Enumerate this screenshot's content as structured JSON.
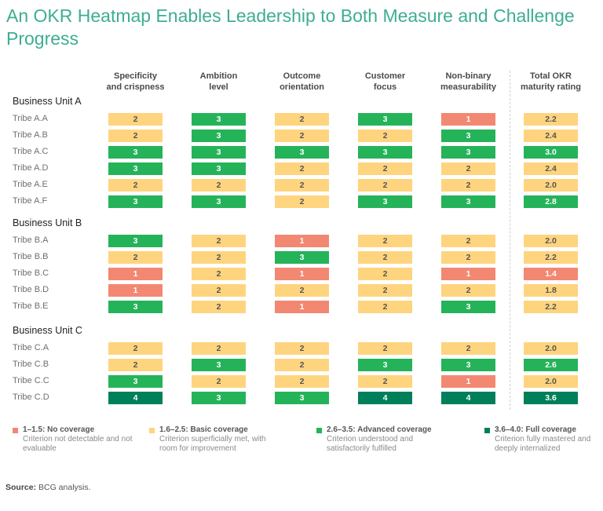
{
  "title": "An OKR Heatmap Enables Leadership to Both Measure and Challenge Progress",
  "chart_data": {
    "type": "heatmap",
    "title": "An OKR Heatmap Enables Leadership to Both Measure and Challenge Progress",
    "columns": [
      {
        "line1": "Specificity",
        "line2": "and crispness"
      },
      {
        "line1": "Ambition",
        "line2": "level"
      },
      {
        "line1": "Outcome",
        "line2": "orientation"
      },
      {
        "line1": "Customer",
        "line2": "focus"
      },
      {
        "line1": "Non-binary",
        "line2": "measurability"
      },
      {
        "line1": "Total OKR",
        "line2": "maturity rating"
      }
    ],
    "groups": [
      {
        "name": "Business Unit A",
        "rows": [
          {
            "label": "Tribe A.A",
            "values": [
              2,
              3,
              2,
              3,
              1
            ],
            "total": "2.2"
          },
          {
            "label": "Tribe A.B",
            "values": [
              2,
              3,
              2,
              2,
              3
            ],
            "total": "2.4"
          },
          {
            "label": "Tribe A.C",
            "values": [
              3,
              3,
              3,
              3,
              3
            ],
            "total": "3.0"
          },
          {
            "label": "Tribe A.D",
            "values": [
              3,
              3,
              2,
              2,
              2
            ],
            "total": "2.4"
          },
          {
            "label": "Tribe A.E",
            "values": [
              2,
              2,
              2,
              2,
              2
            ],
            "total": "2.0"
          },
          {
            "label": "Tribe A.F",
            "values": [
              3,
              3,
              2,
              3,
              3
            ],
            "total": "2.8"
          }
        ]
      },
      {
        "name": "Business Unit B",
        "rows": [
          {
            "label": "Tribe B.A",
            "values": [
              3,
              2,
              1,
              2,
              2
            ],
            "total": "2.0"
          },
          {
            "label": "Tribe B.B",
            "values": [
              2,
              2,
              3,
              2,
              2
            ],
            "total": "2.2"
          },
          {
            "label": "Tribe B.C",
            "values": [
              1,
              2,
              1,
              2,
              1
            ],
            "total": "1.4"
          },
          {
            "label": "Tribe B.D",
            "values": [
              1,
              2,
              2,
              2,
              2
            ],
            "total": "1.8"
          },
          {
            "label": "Tribe B.E",
            "values": [
              3,
              2,
              1,
              2,
              3
            ],
            "total": "2.2"
          }
        ]
      },
      {
        "name": "Business Unit C",
        "rows": [
          {
            "label": "Tribe C.A",
            "values": [
              2,
              2,
              2,
              2,
              2
            ],
            "total": "2.0"
          },
          {
            "label": "Tribe C.B",
            "values": [
              2,
              3,
              2,
              3,
              3
            ],
            "total": "2.6"
          },
          {
            "label": "Tribe C.C",
            "values": [
              3,
              2,
              2,
              2,
              1
            ],
            "total": "2.0"
          },
          {
            "label": "Tribe C.D",
            "values": [
              4,
              3,
              3,
              4,
              4
            ],
            "total": "3.6"
          }
        ]
      }
    ],
    "scale": [
      {
        "range": [
          1.0,
          1.5
        ],
        "label": "1–1.5: No coverage",
        "desc": "Criterion not detectable and not evaluable",
        "color": "#F28872",
        "text_color": "#ffffff"
      },
      {
        "range": [
          1.6,
          2.5
        ],
        "label": "1.6–2.5: Basic coverage",
        "desc": "Criterion superficially met, with room for improvement",
        "color": "#FFD47F",
        "text_color": "#555555"
      },
      {
        "range": [
          2.6,
          3.5
        ],
        "label": "2.6–3.5: Advanced coverage",
        "desc": "Criterion understood and satisfactorily fulfilled",
        "color": "#25B35A",
        "text_color": "#ffffff"
      },
      {
        "range": [
          3.6,
          4.0
        ],
        "label": "3.6–4.0: Full coverage",
        "desc": "Criterion fully mastered and deeply internalized",
        "color": "#007F5B",
        "text_color": "#ffffff"
      }
    ]
  },
  "source": {
    "label": "Source:",
    "text": " BCG analysis."
  }
}
